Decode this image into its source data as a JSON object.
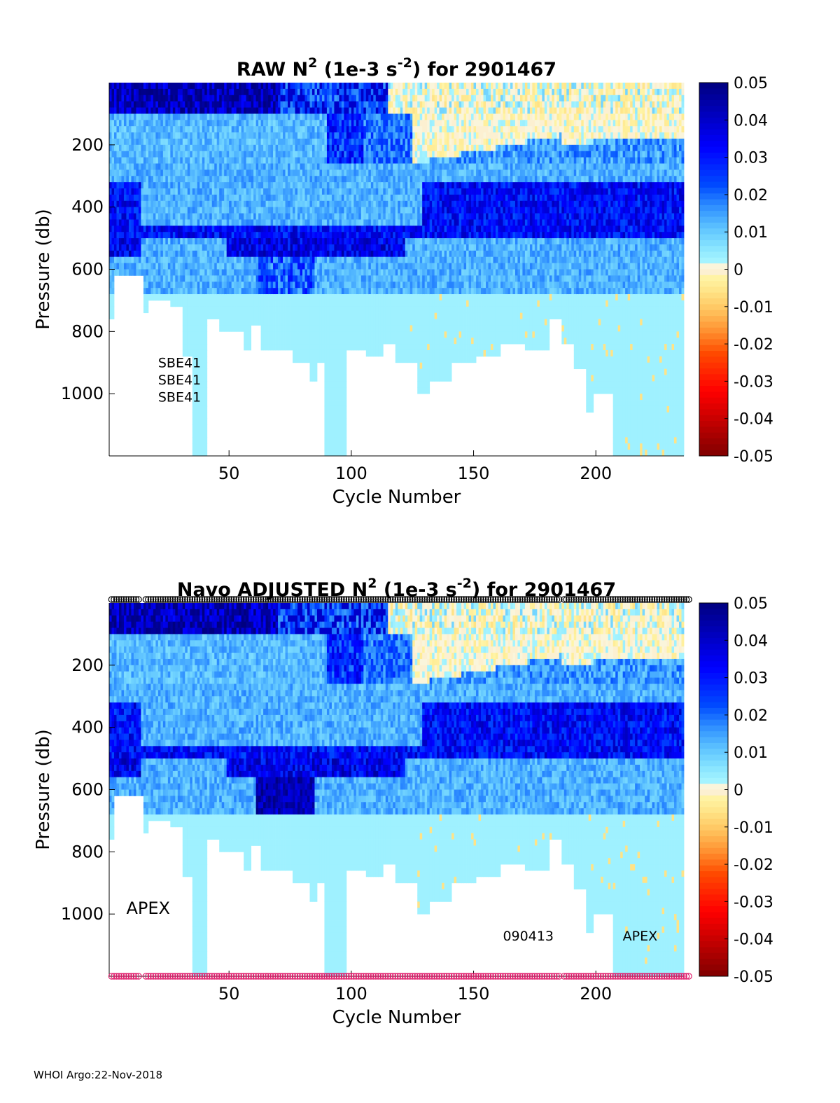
{
  "footer": "WHOI Argo:22-Nov-2018",
  "chart_data": [
    {
      "type": "heatmap",
      "title_main": "RAW N",
      "title_exp1": "2",
      "title_mid": " (1e-3 s",
      "title_exp2": "-2",
      "title_end": ") for 2901467",
      "xlabel": "Cycle Number",
      "ylabel": "Pressure (db)",
      "xlim": [
        1,
        236
      ],
      "ylim": [
        1200,
        0
      ],
      "xticks": [
        50,
        100,
        150,
        200
      ],
      "yticks": [
        200,
        400,
        600,
        800,
        1000
      ],
      "clim": [
        -0.05,
        0.05
      ],
      "colorbar_ticks": [
        "0.05",
        "0.04",
        "0.03",
        "0.02",
        "0.01",
        "0",
        "-0.01",
        "-0.02",
        "-0.03",
        "-0.04",
        "-0.05"
      ],
      "annotations": [
        {
          "text": "SBE41",
          "x": 21,
          "p": 915
        },
        {
          "text": "SBE41",
          "x": 21,
          "p": 970
        },
        {
          "text": "SBE41",
          "x": 21,
          "p": 1025
        }
      ],
      "profile_markers": false
    },
    {
      "type": "heatmap",
      "title_main": "Navo  ADJUSTED N",
      "title_exp1": "2",
      "title_mid": " (1e-3 s",
      "title_exp2": "-2",
      "title_end": ") for 2901467",
      "xlabel": "Cycle Number",
      "ylabel": "Pressure (db)",
      "xlim": [
        1,
        236
      ],
      "ylim": [
        1200,
        0
      ],
      "xticks": [
        50,
        100,
        150,
        200
      ],
      "yticks": [
        200,
        400,
        600,
        800,
        1000
      ],
      "clim": [
        -0.05,
        0.05
      ],
      "colorbar_ticks": [
        "0.05",
        "0.04",
        "0.03",
        "0.02",
        "0.01",
        "0",
        "-0.01",
        "-0.02",
        "-0.03",
        "-0.04",
        "-0.05"
      ],
      "annotations": [
        {
          "text": "APEX",
          "x": 8,
          "p": 1000,
          "size": "large"
        },
        {
          "text": "090413",
          "x": 162,
          "p": 1085
        },
        {
          "text": "APEX",
          "x": 211,
          "p": 1085
        }
      ],
      "profile_markers": true,
      "top_marker_color": "#000000",
      "bottom_marker_color": "#e0206e"
    }
  ]
}
